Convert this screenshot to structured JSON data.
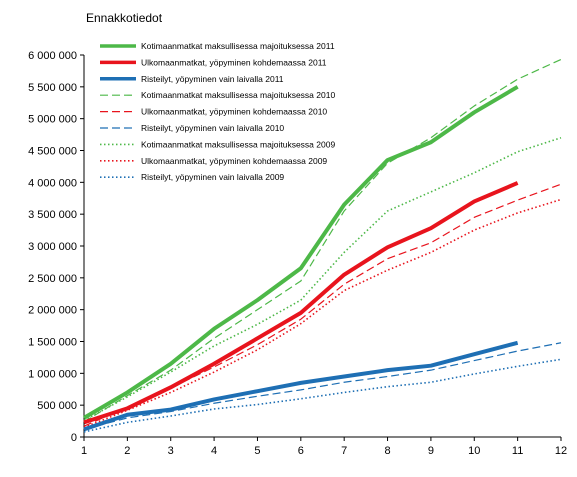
{
  "chart_data": {
    "type": "line",
    "title": "",
    "subtitle": "Ennakkotiedot",
    "xlabel": "",
    "ylabel": "",
    "x": [
      1,
      2,
      3,
      4,
      5,
      6,
      7,
      8,
      9,
      10,
      11,
      12
    ],
    "xlim": [
      1,
      12
    ],
    "ylim": [
      0,
      6000000
    ],
    "ytick_labels": [
      "0",
      "500 000",
      "1 000 000",
      "1 500 000",
      "2 000 000",
      "2 500 000",
      "3 000 000",
      "3 500 000",
      "4 000 000",
      "4 500 000",
      "5 000 000",
      "5 500 000",
      "6 000 000"
    ],
    "xtick_labels": [
      "1",
      "2",
      "3",
      "4",
      "5",
      "6",
      "7",
      "8",
      "9",
      "10",
      "11",
      "12"
    ],
    "grid": false,
    "legend_position": "top-left",
    "series": [
      {
        "name": "Kotimaanmatkat maksullisessa majoituksessa 2011",
        "color": "#4db848",
        "style": "solid",
        "values": [
          300000,
          700000,
          1150000,
          1700000,
          2150000,
          2650000,
          3650000,
          4350000,
          4630000,
          5100000,
          5500000,
          null
        ]
      },
      {
        "name": "Ulkomaanmatkat, yöpyminen kohdemaassa 2011",
        "color": "#e8141d",
        "style": "solid",
        "values": [
          230000,
          450000,
          780000,
          1150000,
          1550000,
          1950000,
          2550000,
          2980000,
          3280000,
          3700000,
          3990000,
          null
        ]
      },
      {
        "name": "Risteilyt, yöpyminen vain laivalla 2011",
        "color": "#1e6fb4",
        "style": "solid",
        "values": [
          120000,
          350000,
          430000,
          590000,
          720000,
          850000,
          950000,
          1050000,
          1120000,
          1300000,
          1480000,
          null
        ]
      },
      {
        "name": "Kotimaanmatkat maksullisessa majoituksessa 2010",
        "color": "#4db848",
        "style": "dashed",
        "values": [
          240000,
          650000,
          1050000,
          1550000,
          2000000,
          2450000,
          3550000,
          4300000,
          4700000,
          5200000,
          5620000,
          5930000
        ]
      },
      {
        "name": "Ulkomaanmatkat, yöpyminen kohdemaassa 2010",
        "color": "#e8141d",
        "style": "dashed",
        "values": [
          170000,
          470000,
          770000,
          1100000,
          1450000,
          1850000,
          2400000,
          2800000,
          3050000,
          3450000,
          3720000,
          3970000
        ]
      },
      {
        "name": "Risteilyt, yöpyminen vain laivalla 2010",
        "color": "#1e6fb4",
        "style": "dashed",
        "values": [
          120000,
          300000,
          400000,
          530000,
          640000,
          740000,
          860000,
          950000,
          1050000,
          1200000,
          1350000,
          1480000
        ]
      },
      {
        "name": "Kotimaanmatkat maksullisessa majoituksessa 2009",
        "color": "#4db848",
        "style": "dotted",
        "values": [
          260000,
          630000,
          1020000,
          1430000,
          1770000,
          2150000,
          2900000,
          3550000,
          3850000,
          4150000,
          4480000,
          4700000
        ]
      },
      {
        "name": "Ulkomaanmatkat, yöpyminen kohdemaassa 2009",
        "color": "#e8141d",
        "style": "dotted",
        "values": [
          150000,
          420000,
          700000,
          1020000,
          1370000,
          1780000,
          2300000,
          2620000,
          2900000,
          3250000,
          3520000,
          3730000
        ]
      },
      {
        "name": "Risteilyt, yöpyminen vain laivalla 2009",
        "color": "#1e6fb4",
        "style": "dotted",
        "values": [
          80000,
          230000,
          330000,
          440000,
          510000,
          600000,
          700000,
          790000,
          860000,
          990000,
          1110000,
          1220000
        ]
      }
    ]
  }
}
